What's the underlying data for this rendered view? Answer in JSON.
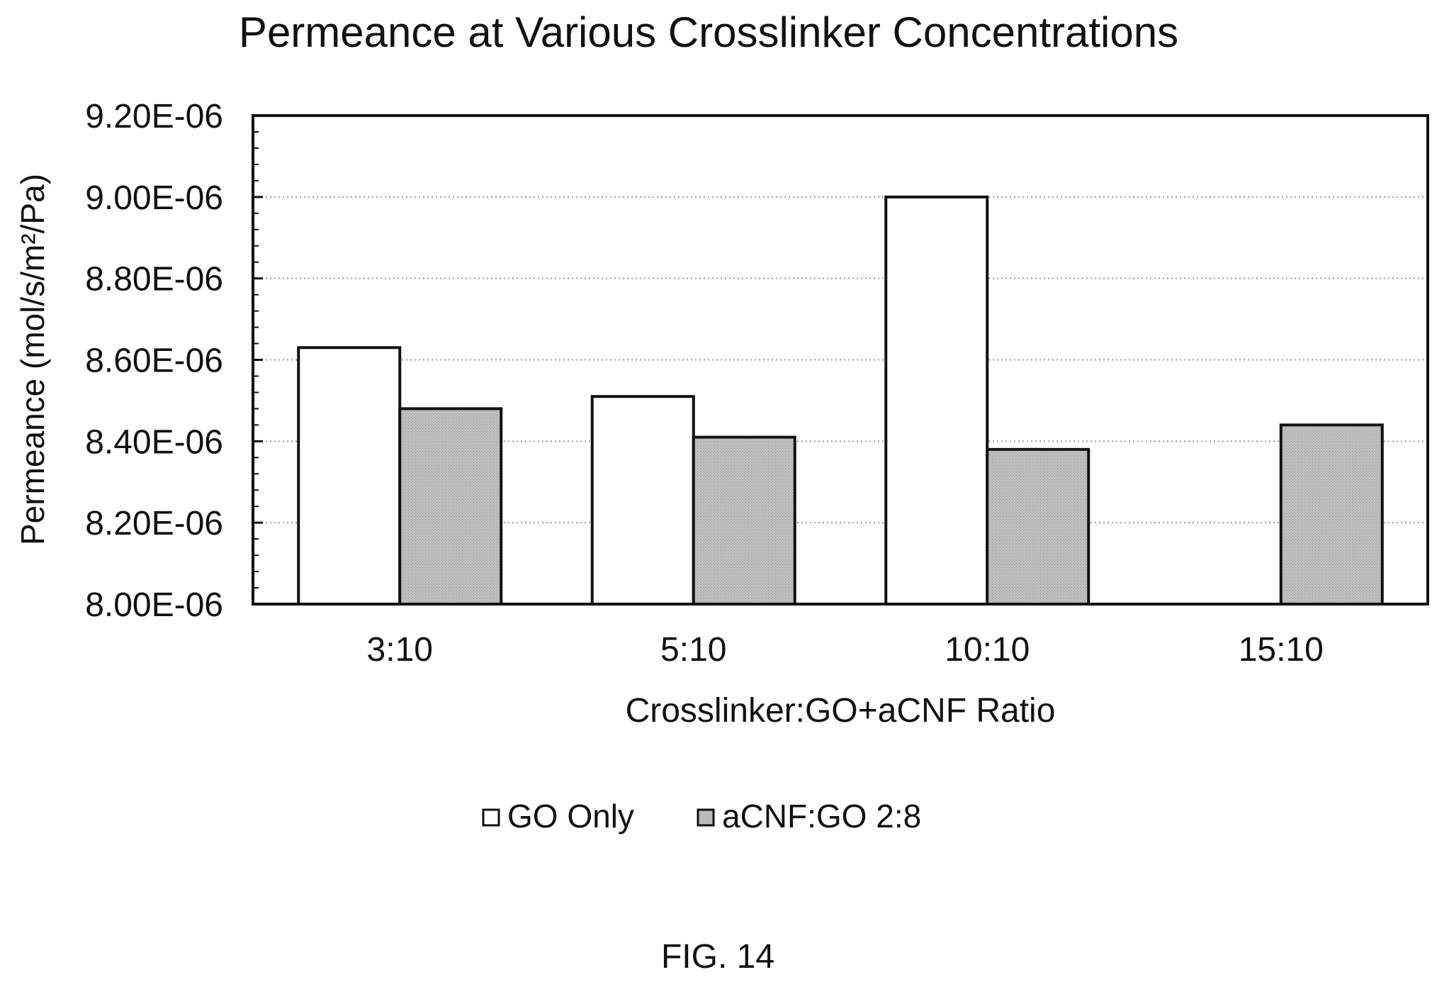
{
  "chart_data": {
    "type": "bar",
    "title": "Permeance at Various Crosslinker Concentrations",
    "xlabel": "Crosslinker:GO+aCNF Ratio",
    "ylabel": "Permeance (mol/s/m²/Pa)",
    "ylim": [
      8e-06,
      9.2e-06
    ],
    "yticks": [
      8e-06,
      8.2e-06,
      8.4e-06,
      8.6e-06,
      8.8e-06,
      9e-06,
      9.2e-06
    ],
    "ytick_labels": [
      "8.00E-06",
      "8.20E-06",
      "8.40E-06",
      "8.60E-06",
      "8.80E-06",
      "9.00E-06",
      "9.20E-06"
    ],
    "categories": [
      "3:10",
      "5:10",
      "10:10",
      "15:10"
    ],
    "series": [
      {
        "name": "GO Only",
        "color": "#ffffff",
        "values": [
          8.63e-06,
          8.51e-06,
          9e-06,
          null
        ]
      },
      {
        "name": "aCNF:GO 2:8",
        "color": "#bdbdbd",
        "values": [
          8.48e-06,
          8.41e-06,
          8.38e-06,
          8.44e-06
        ]
      }
    ],
    "grid": true,
    "legend": "bottom",
    "caption": "FIG. 14"
  }
}
